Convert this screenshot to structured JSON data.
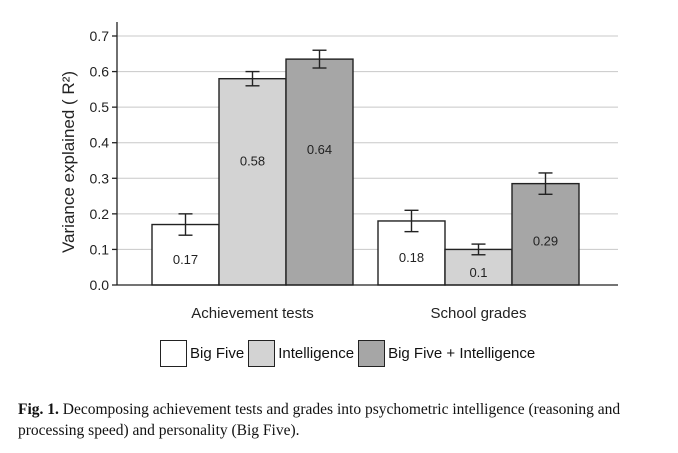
{
  "chart_data": {
    "type": "bar",
    "categories": [
      "Achievement tests",
      "School grades"
    ],
    "series": [
      {
        "name": "Big Five",
        "values": [
          0.17,
          0.18
        ],
        "labels": [
          "0.17",
          "0.18"
        ],
        "err": [
          0.03,
          0.03
        ],
        "color": "#ffffff"
      },
      {
        "name": "Intelligence",
        "values": [
          0.58,
          0.1
        ],
        "labels": [
          "0.58",
          "0.1"
        ],
        "err": [
          0.02,
          0.015
        ],
        "color": "#d3d3d3"
      },
      {
        "name": "Big Five + Intelligence",
        "values": [
          0.635,
          0.285
        ],
        "labels": [
          "0.64",
          "0.29"
        ],
        "err": [
          0.025,
          0.03
        ],
        "color": "#a6a6a6"
      }
    ],
    "ylabel": "Variance explained ( R²)",
    "xlabel": "",
    "ylim": [
      0,
      0.7
    ],
    "yticks": [
      "0.0",
      "0.1",
      "0.2",
      "0.3",
      "0.4",
      "0.5",
      "0.6",
      "0.7"
    ],
    "grid": true,
    "legend_position": "bottom"
  },
  "caption": {
    "label": "Fig. 1.",
    "text": " Decomposing achievement tests and grades into psychometric intelligence (reasoning and processing speed) and personality (Big Five)."
  }
}
